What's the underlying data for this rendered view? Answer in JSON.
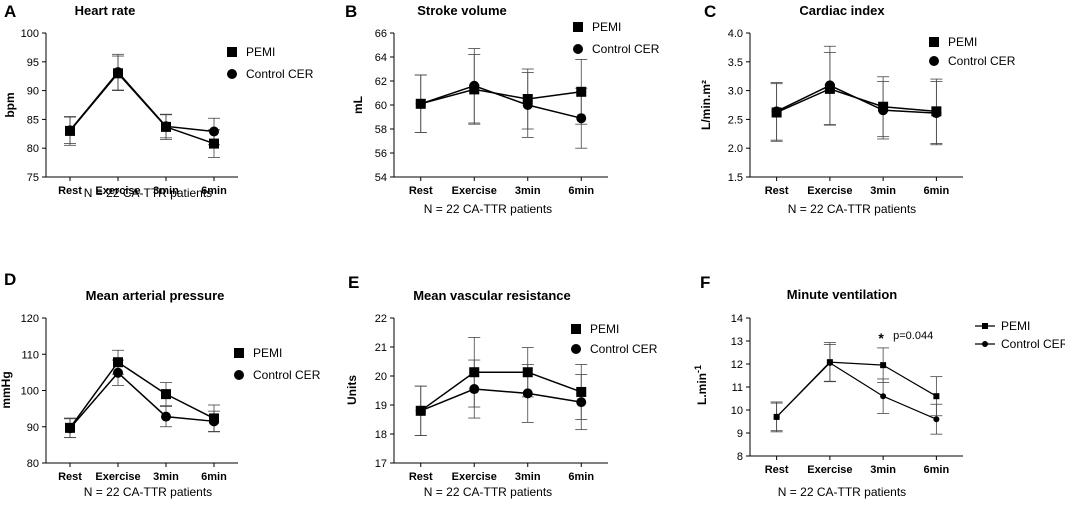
{
  "chart_data": [
    {
      "letter": "A",
      "type": "line",
      "title": "Heart rate",
      "xlabel": "N = 22 CA-TTR patients",
      "ylabel": "bpm",
      "ylim": [
        75,
        100
      ],
      "yticks": [
        75,
        80,
        85,
        90,
        95,
        100
      ],
      "categories": [
        "Rest",
        "Exercise",
        "3min",
        "6min"
      ],
      "series": [
        {
          "name": "PEMI",
          "marker": "square",
          "values": [
            83.0,
            93.0,
            83.7,
            80.8
          ],
          "errors": [
            2.5,
            3.0,
            2.2,
            2.4
          ]
        },
        {
          "name": "Control CER",
          "marker": "circle",
          "values": [
            83.1,
            93.2,
            83.8,
            82.9
          ],
          "errors": [
            2.3,
            3.1,
            2.0,
            2.3
          ]
        }
      ]
    },
    {
      "letter": "B",
      "type": "line",
      "title": "Stroke volume",
      "xlabel": "N = 22 CA-TTR patients",
      "ylabel": "mL",
      "ylim": [
        54,
        66
      ],
      "yticks": [
        54,
        56,
        58,
        60,
        62,
        64,
        66
      ],
      "categories": [
        "Rest",
        "Exercise",
        "3min",
        "6min"
      ],
      "series": [
        {
          "name": "PEMI",
          "marker": "square",
          "values": [
            60.1,
            61.3,
            60.5,
            61.1
          ],
          "errors": [
            2.4,
            2.9,
            2.5,
            2.7
          ]
        },
        {
          "name": "Control CER",
          "marker": "circle",
          "values": [
            60.1,
            61.6,
            60.0,
            58.9
          ],
          "errors": [
            2.4,
            3.1,
            2.7,
            2.5
          ]
        }
      ]
    },
    {
      "letter": "C",
      "type": "line",
      "title": "Cardiac index",
      "xlabel": "N = 22 CA-TTR patients",
      "ylabel": "L/min.m²",
      "ylim": [
        1.5,
        4.0
      ],
      "yticks": [
        1.5,
        2.0,
        2.5,
        3.0,
        3.5,
        4.0
      ],
      "categories": [
        "Rest",
        "Exercise",
        "3min",
        "6min"
      ],
      "series": [
        {
          "name": "PEMI",
          "marker": "square",
          "values": [
            2.62,
            3.03,
            2.72,
            2.64
          ],
          "errors": [
            0.5,
            0.63,
            0.52,
            0.56
          ]
        },
        {
          "name": "Control CER",
          "marker": "circle",
          "values": [
            2.64,
            3.09,
            2.66,
            2.61
          ],
          "errors": [
            0.5,
            0.68,
            0.5,
            0.55
          ]
        }
      ]
    },
    {
      "letter": "D",
      "type": "line",
      "title": "Mean arterial pressure",
      "xlabel": "N = 22 CA-TTR patients",
      "ylabel": "mmHg",
      "ylim": [
        80,
        120
      ],
      "yticks": [
        80,
        90,
        100,
        110,
        120
      ],
      "categories": [
        "Rest",
        "Exercise",
        "3min",
        "6min"
      ],
      "series": [
        {
          "name": "PEMI",
          "marker": "square",
          "values": [
            89.7,
            107.8,
            99.0,
            92.3
          ],
          "errors": [
            2.7,
            3.3,
            3.2,
            3.7
          ]
        },
        {
          "name": "Control CER",
          "marker": "circle",
          "values": [
            89.6,
            104.9,
            92.8,
            91.5
          ],
          "errors": [
            2.6,
            3.5,
            2.8,
            2.8
          ]
        }
      ]
    },
    {
      "letter": "E",
      "type": "line",
      "title": "Mean vascular resistance",
      "xlabel": "N = 22 CA-TTR patients",
      "ylabel": "Units",
      "ylim": [
        17,
        22
      ],
      "yticks": [
        17,
        18,
        19,
        20,
        21,
        22
      ],
      "categories": [
        "Rest",
        "Exercise",
        "3min",
        "6min"
      ],
      "series": [
        {
          "name": "PEMI",
          "marker": "square",
          "values": [
            18.8,
            20.13,
            20.13,
            19.45
          ],
          "errors": [
            0.85,
            1.2,
            0.85,
            0.95
          ]
        },
        {
          "name": "Control CER",
          "marker": "circle",
          "values": [
            18.8,
            19.55,
            19.4,
            19.1
          ],
          "errors": [
            0.85,
            1.0,
            1.0,
            0.95
          ]
        }
      ]
    },
    {
      "letter": "F",
      "type": "line",
      "title": "Minute ventilation",
      "xlabel": "N = 22 CA-TTR patients",
      "ylabel": "L.min",
      "ylabel_sup": "-1",
      "ylim": [
        8,
        14
      ],
      "yticks": [
        8,
        9,
        10,
        11,
        12,
        13,
        14
      ],
      "categories": [
        "Rest",
        "Exercise",
        "3min",
        "6min"
      ],
      "series": [
        {
          "name": "PEMI",
          "marker": "square",
          "values": [
            9.7,
            12.08,
            11.95,
            10.6
          ],
          "errors": [
            0.65,
            0.85,
            0.75,
            0.85
          ]
        },
        {
          "name": "Control CER",
          "marker": "circle",
          "values": [
            9.7,
            12.05,
            10.6,
            9.6
          ],
          "errors": [
            0.6,
            0.8,
            0.75,
            0.65
          ]
        }
      ],
      "annotation": {
        "category": "3min",
        "star": "*",
        "text": "p=0.044"
      }
    }
  ]
}
